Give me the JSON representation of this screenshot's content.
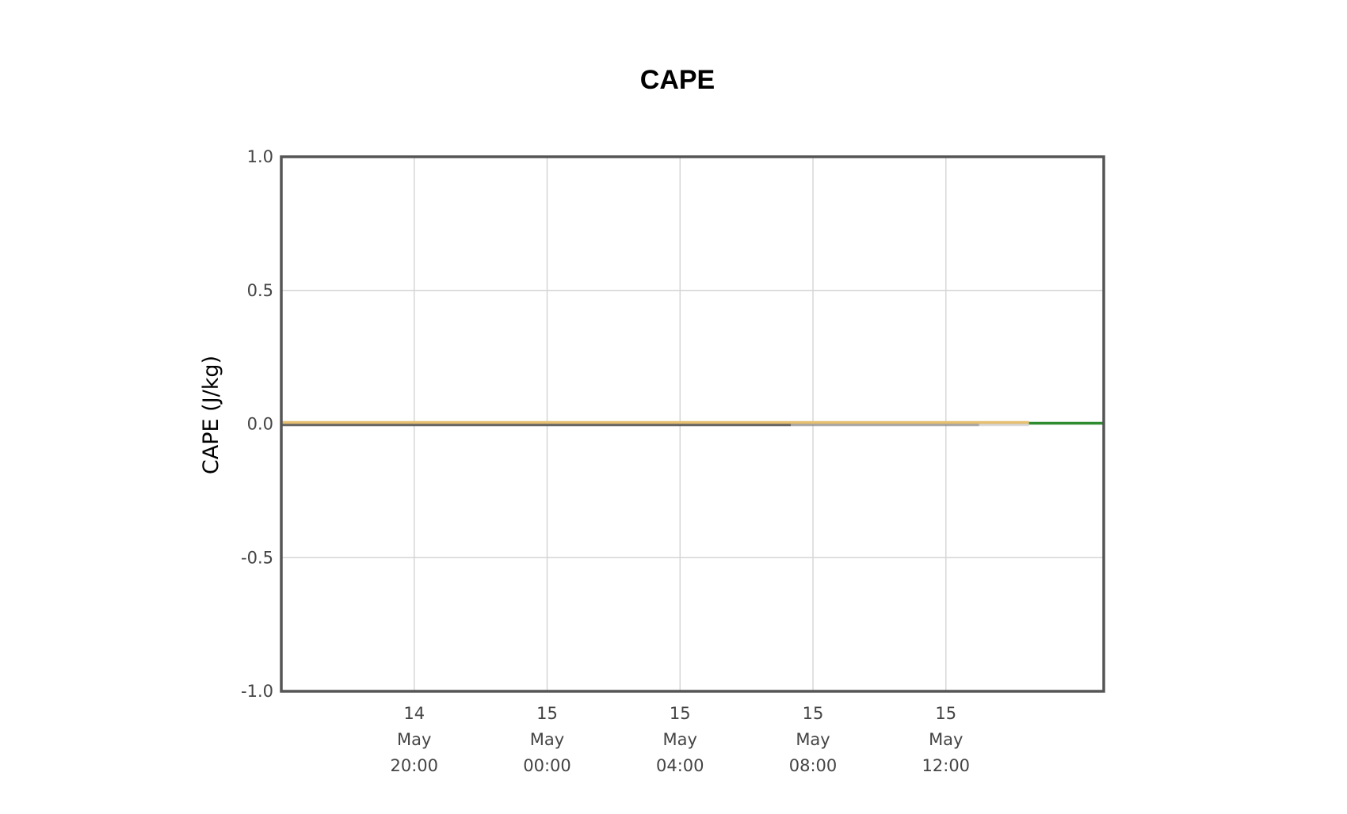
{
  "chart_data": {
    "type": "line",
    "title": "CAPE",
    "xlabel": "",
    "ylabel": "CAPE (J/kg)",
    "ylim": [
      -1.0,
      1.0
    ],
    "xlim": [
      "2024-05-14T16:00",
      "2024-05-15T16:45"
    ],
    "y_ticks": [
      {
        "value": 1.0,
        "label": "1.0"
      },
      {
        "value": 0.5,
        "label": "0.5"
      },
      {
        "value": 0.0,
        "label": "0.0"
      },
      {
        "value": -0.5,
        "label": "-0.5"
      },
      {
        "value": -1.0,
        "label": "-1.0"
      }
    ],
    "x_ticks": [
      {
        "value": "2024-05-14T20:00",
        "lines": [
          "14",
          "May",
          "20:00"
        ]
      },
      {
        "value": "2024-05-15T00:00",
        "lines": [
          "15",
          "May",
          "00:00"
        ]
      },
      {
        "value": "2024-05-15T04:00",
        "lines": [
          "15",
          "May",
          "04:00"
        ]
      },
      {
        "value": "2024-05-15T08:00",
        "lines": [
          "15",
          "May",
          "08:00"
        ]
      },
      {
        "value": "2024-05-15T12:00",
        "lines": [
          "15",
          "May",
          "12:00"
        ]
      }
    ],
    "grid": true,
    "legend": "none",
    "series": [
      {
        "color": "#555555",
        "opacity": 0.9,
        "offset": 1,
        "x": [
          "2024-05-14T16:00",
          "2024-05-15T07:20"
        ],
        "y": [
          0,
          0
        ]
      },
      {
        "color": "#888888",
        "opacity": 0.7,
        "offset": 1,
        "x": [
          "2024-05-15T07:20",
          "2024-05-15T13:00"
        ],
        "y": [
          0,
          0
        ]
      },
      {
        "color": "#cccccc",
        "opacity": 0.7,
        "offset": 1,
        "x": [
          "2024-05-15T13:00",
          "2024-05-15T14:30"
        ],
        "y": [
          0,
          0
        ]
      },
      {
        "color": "#e6c070",
        "opacity": 1,
        "offset": -2,
        "x": [
          "2024-05-14T16:00",
          "2024-05-15T14:30"
        ],
        "y": [
          0,
          0
        ]
      },
      {
        "color": "#2e8b2e",
        "opacity": 1,
        "offset": -1,
        "x": [
          "2024-05-15T14:30",
          "2024-05-15T16:45"
        ],
        "y": [
          0,
          0
        ]
      }
    ]
  }
}
